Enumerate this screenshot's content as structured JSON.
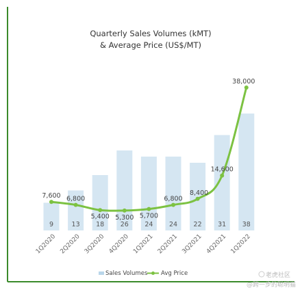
{
  "chart_data": {
    "type": "bar",
    "title_line1": "Quarterly Sales Volumes (kMT)",
    "title_line2": "& Average Price (US$/MT)",
    "categories": [
      "1Q2020",
      "2Q2020",
      "3Q2020",
      "4Q2020",
      "1Q2021",
      "2Q2021",
      "3Q2021",
      "4Q2021",
      "1Q2022"
    ],
    "series": [
      {
        "name": "Sales Volumes",
        "type": "bar",
        "axis": "left",
        "values": [
          9,
          13,
          18,
          26,
          24,
          24,
          22,
          31,
          38
        ],
        "color": "#d5e6f2"
      },
      {
        "name": "Avg Price",
        "type": "line",
        "axis": "right",
        "values": [
          7600,
          6800,
          5400,
          5300,
          5700,
          6800,
          8400,
          14600,
          38000
        ],
        "value_labels": [
          "7,600",
          "6,800",
          "5,400",
          "5,300",
          "5,700",
          "6,800",
          "8,400",
          "14,600",
          "38,000"
        ],
        "color": "#7cc242"
      }
    ],
    "volume_axis_range": [
      0,
      50
    ],
    "price_axis_range": [
      0,
      40000
    ],
    "gridlines": false,
    "legend_position": "bottom"
  },
  "watermark": {
    "line1": "老虎社区",
    "line2": "@跨一步的聪明猫"
  }
}
